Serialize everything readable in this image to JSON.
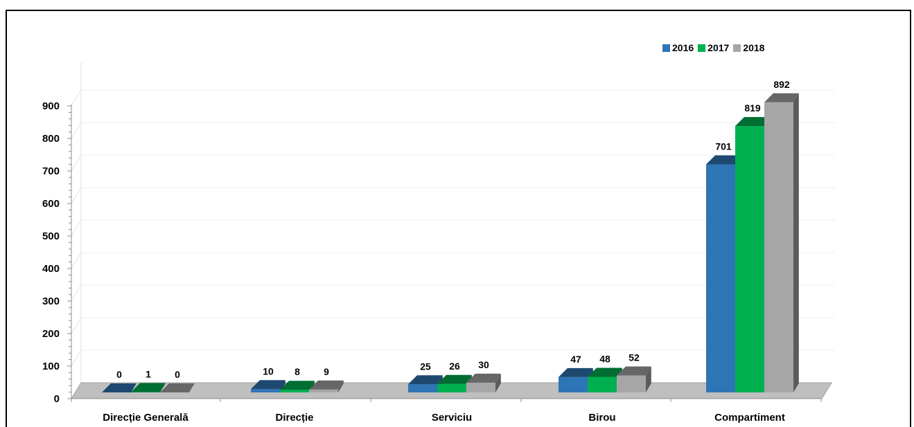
{
  "chart_data": {
    "type": "bar",
    "categories": [
      "Direcție Generală",
      "Direcție",
      "Serviciu",
      "Birou",
      "Compartiment"
    ],
    "series": [
      {
        "name": "2016",
        "values": [
          0,
          10,
          25,
          47,
          701
        ],
        "color": "#2e75b6"
      },
      {
        "name": "2017",
        "values": [
          1,
          8,
          26,
          48,
          819
        ],
        "color": "#00b050"
      },
      {
        "name": "2018",
        "values": [
          0,
          9,
          30,
          52,
          892
        ],
        "color": "#a6a6a6"
      }
    ],
    "y_ticks": [
      "0",
      "100",
      "200",
      "300",
      "400",
      "500",
      "600",
      "700",
      "800",
      "900"
    ],
    "ylim": [
      0,
      900
    ],
    "grid": true,
    "legend_position": "top-right",
    "style": "3d-clustered-column"
  }
}
